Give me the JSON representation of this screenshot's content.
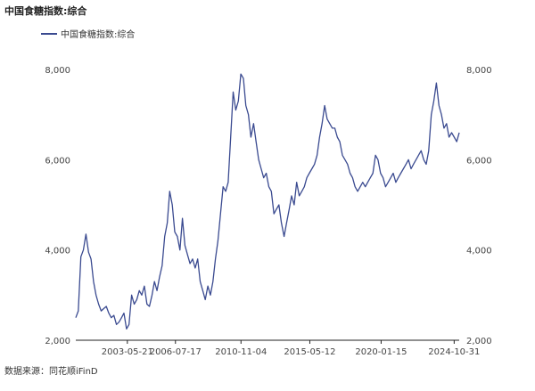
{
  "title": "中国食糖指数:综合",
  "source": "数据来源：同花顺iFinD",
  "colors": {
    "line": "#3a4a90",
    "axis": "#222222"
  },
  "chart_data": {
    "type": "line",
    "title": "中国食糖指数:综合",
    "xlabel": "",
    "ylabel": "",
    "ylim": [
      2000,
      8000
    ],
    "y_ticks": [
      2000,
      4000,
      6000,
      8000
    ],
    "y_tick_labels": [
      "2,000",
      "4,000",
      "6,000",
      "8,000"
    ],
    "right_axis_tick_labels": [
      "2,000",
      "4,000",
      "6,000",
      "8,000"
    ],
    "x_tick_labels": [
      "2003-05-21",
      "2006-07-17",
      "2010-11-04",
      "2015-05-12",
      "2020-01-15",
      "2024-10-31"
    ],
    "grid": false,
    "legend_position": "top-left",
    "series": [
      {
        "name": "中国食糖指数:综合",
        "x": [
          "2000-01",
          "2000-03",
          "2000-05",
          "2000-07",
          "2000-09",
          "2000-11",
          "2001-01",
          "2001-03",
          "2001-05",
          "2001-07",
          "2001-09",
          "2001-11",
          "2002-01",
          "2002-03",
          "2002-05",
          "2002-07",
          "2002-09",
          "2002-11",
          "2003-01",
          "2003-03",
          "2003-05",
          "2003-07",
          "2003-09",
          "2003-11",
          "2004-01",
          "2004-03",
          "2004-05",
          "2004-07",
          "2004-09",
          "2004-11",
          "2005-01",
          "2005-03",
          "2005-05",
          "2005-07",
          "2005-09",
          "2005-11",
          "2006-01",
          "2006-03",
          "2006-05",
          "2006-07",
          "2006-09",
          "2006-11",
          "2007-01",
          "2007-03",
          "2007-05",
          "2007-07",
          "2007-09",
          "2007-11",
          "2008-01",
          "2008-03",
          "2008-05",
          "2008-07",
          "2008-09",
          "2008-11",
          "2009-01",
          "2009-03",
          "2009-05",
          "2009-07",
          "2009-09",
          "2009-11",
          "2010-01",
          "2010-03",
          "2010-05",
          "2010-07",
          "2010-09",
          "2010-11",
          "2011-01",
          "2011-03",
          "2011-05",
          "2011-07",
          "2011-09",
          "2011-11",
          "2012-01",
          "2012-03",
          "2012-05",
          "2012-07",
          "2012-09",
          "2012-11",
          "2013-01",
          "2013-03",
          "2013-05",
          "2013-07",
          "2013-09",
          "2013-11",
          "2014-01",
          "2014-03",
          "2014-05",
          "2014-07",
          "2014-09",
          "2014-11",
          "2015-01",
          "2015-03",
          "2015-05",
          "2015-07",
          "2015-09",
          "2015-11",
          "2016-01",
          "2016-03",
          "2016-05",
          "2016-07",
          "2016-09",
          "2016-11",
          "2017-01",
          "2017-03",
          "2017-05",
          "2017-07",
          "2017-09",
          "2017-11",
          "2018-01",
          "2018-03",
          "2018-05",
          "2018-07",
          "2018-09",
          "2018-11",
          "2019-01",
          "2019-03",
          "2019-05",
          "2019-07",
          "2019-09",
          "2019-11",
          "2020-01",
          "2020-03",
          "2020-05",
          "2020-07",
          "2020-09",
          "2020-11",
          "2021-01",
          "2021-03",
          "2021-05",
          "2021-07",
          "2021-09",
          "2021-11",
          "2022-01",
          "2022-03",
          "2022-05",
          "2022-07",
          "2022-09",
          "2022-11",
          "2023-01",
          "2023-03",
          "2023-05",
          "2023-07",
          "2023-09",
          "2023-11",
          "2024-01",
          "2024-03",
          "2024-05",
          "2024-07",
          "2024-09",
          "2024-11",
          "2025-01",
          "2025-03"
        ],
        "values": [
          2500,
          2650,
          3850,
          4000,
          4350,
          3950,
          3800,
          3300,
          3000,
          2800,
          2650,
          2700,
          2750,
          2600,
          2500,
          2550,
          2350,
          2400,
          2500,
          2600,
          2250,
          2350,
          3000,
          2800,
          2900,
          3100,
          3000,
          3200,
          2800,
          2750,
          3000,
          3300,
          3100,
          3400,
          3650,
          4300,
          4600,
          5300,
          5000,
          4400,
          4300,
          4000,
          4700,
          4100,
          3900,
          3700,
          3800,
          3600,
          3800,
          3300,
          3100,
          2900,
          3200,
          3000,
          3300,
          3800,
          4200,
          4800,
          5400,
          5300,
          5500,
          6500,
          7500,
          7100,
          7300,
          7900,
          7800,
          7200,
          7000,
          6500,
          6800,
          6400,
          6000,
          5800,
          5600,
          5700,
          5400,
          5300,
          4800,
          4900,
          5000,
          4600,
          4300,
          4600,
          4900,
          5200,
          5000,
          5500,
          5200,
          5300,
          5400,
          5600,
          5700,
          5800,
          5900,
          6100,
          6500,
          6800,
          7200,
          6900,
          6800,
          6700,
          6700,
          6500,
          6400,
          6100,
          6000,
          5900,
          5700,
          5600,
          5400,
          5300,
          5400,
          5500,
          5400,
          5500,
          5600,
          5700,
          6100,
          6000,
          5700,
          5600,
          5400,
          5500,
          5600,
          5700,
          5500,
          5600,
          5700,
          5800,
          5900,
          6000,
          5800,
          5900,
          6000,
          6100,
          6200,
          6000,
          5900,
          6200,
          7000,
          7300,
          7700,
          7200,
          7000,
          6700,
          6800,
          6500,
          6600,
          6500,
          6400,
          6600
        ]
      }
    ]
  }
}
